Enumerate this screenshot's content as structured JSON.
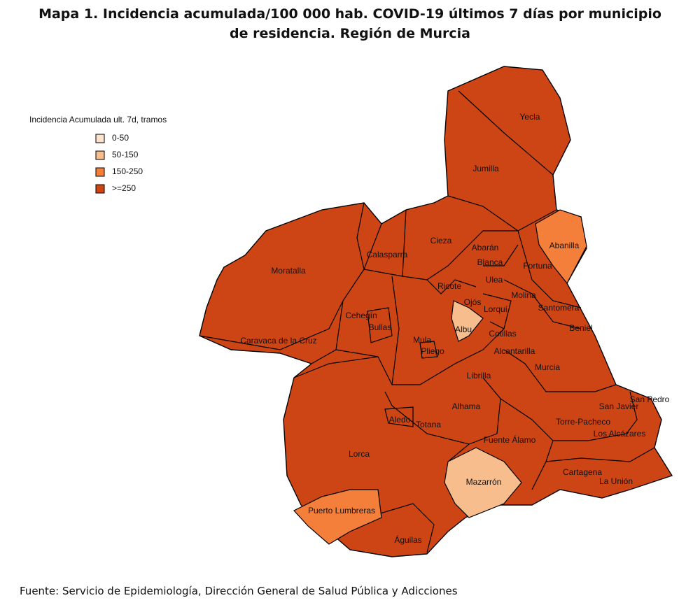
{
  "header": {
    "title": [
      "Mapa 1. Incidencia acumulada/100 000 hab. COVID-19 últimos 7 días por municipio",
      "de residencia. Región de Murcia"
    ]
  },
  "legend": {
    "title": "Incidencia Acumulada ult. 7d, tramos",
    "items": [
      {
        "label": "0-50",
        "color": "#fde3ce"
      },
      {
        "label": "50-150",
        "color": "#f8bd8c"
      },
      {
        "label": "150-250",
        "color": "#f47f3b"
      },
      {
        "label": ">=250",
        "color": "#cd4515"
      }
    ]
  },
  "municipalities": [
    {
      "name": "Yecla",
      "class": 3
    },
    {
      "name": "Jumilla",
      "class": 3
    },
    {
      "name": "Abanilla",
      "class": 2
    },
    {
      "name": "Cieza",
      "class": 3
    },
    {
      "name": "Calasparra",
      "class": 3
    },
    {
      "name": "Moratalla",
      "class": 3
    },
    {
      "name": "Abarán",
      "class": 3
    },
    {
      "name": "Blanca",
      "class": 3
    },
    {
      "name": "Fortuna",
      "class": 3
    },
    {
      "name": "Ricote",
      "class": 3
    },
    {
      "name": "Ulea",
      "class": 3
    },
    {
      "name": "Ojós",
      "class": 3
    },
    {
      "name": "Molina",
      "class": 3
    },
    {
      "name": "Santomera",
      "class": 3
    },
    {
      "name": "Cehegín",
      "class": 3
    },
    {
      "name": "Bullas",
      "class": 3
    },
    {
      "name": "Albu",
      "class": 1
    },
    {
      "name": "Beniel",
      "class": 3
    },
    {
      "name": "Caravaca de la Cruz",
      "class": 3
    },
    {
      "name": "Mula",
      "class": 3
    },
    {
      "name": "Pliego",
      "class": 3
    },
    {
      "name": "Cotillas",
      "class": 3
    },
    {
      "name": "Lorquí",
      "class": 3
    },
    {
      "name": "Alcantarilla",
      "class": 3
    },
    {
      "name": "Murcia",
      "class": 3
    },
    {
      "name": "Librilla",
      "class": 3
    },
    {
      "name": "San Pedro",
      "class": 3
    },
    {
      "name": "San Javier",
      "class": 3
    },
    {
      "name": "Alhama",
      "class": 3
    },
    {
      "name": "Aledo",
      "class": 3
    },
    {
      "name": "Totana",
      "class": 3
    },
    {
      "name": "Torre-Pacheco",
      "class": 3
    },
    {
      "name": "Los Alcázares",
      "class": 3
    },
    {
      "name": "Fuente Álamo",
      "class": 3
    },
    {
      "name": "Lorca",
      "class": 3
    },
    {
      "name": "Mazarrón",
      "class": 1
    },
    {
      "name": "Cartagena",
      "class": 3
    },
    {
      "name": "La Unión",
      "class": 3
    },
    {
      "name": "Puerto Lumbreras",
      "class": 2
    },
    {
      "name": "Águilas",
      "class": 3
    }
  ],
  "footer": {
    "source": "Fuente: Servicio de Epidemiología, Dirección General de Salud Pública y Adicciones"
  }
}
